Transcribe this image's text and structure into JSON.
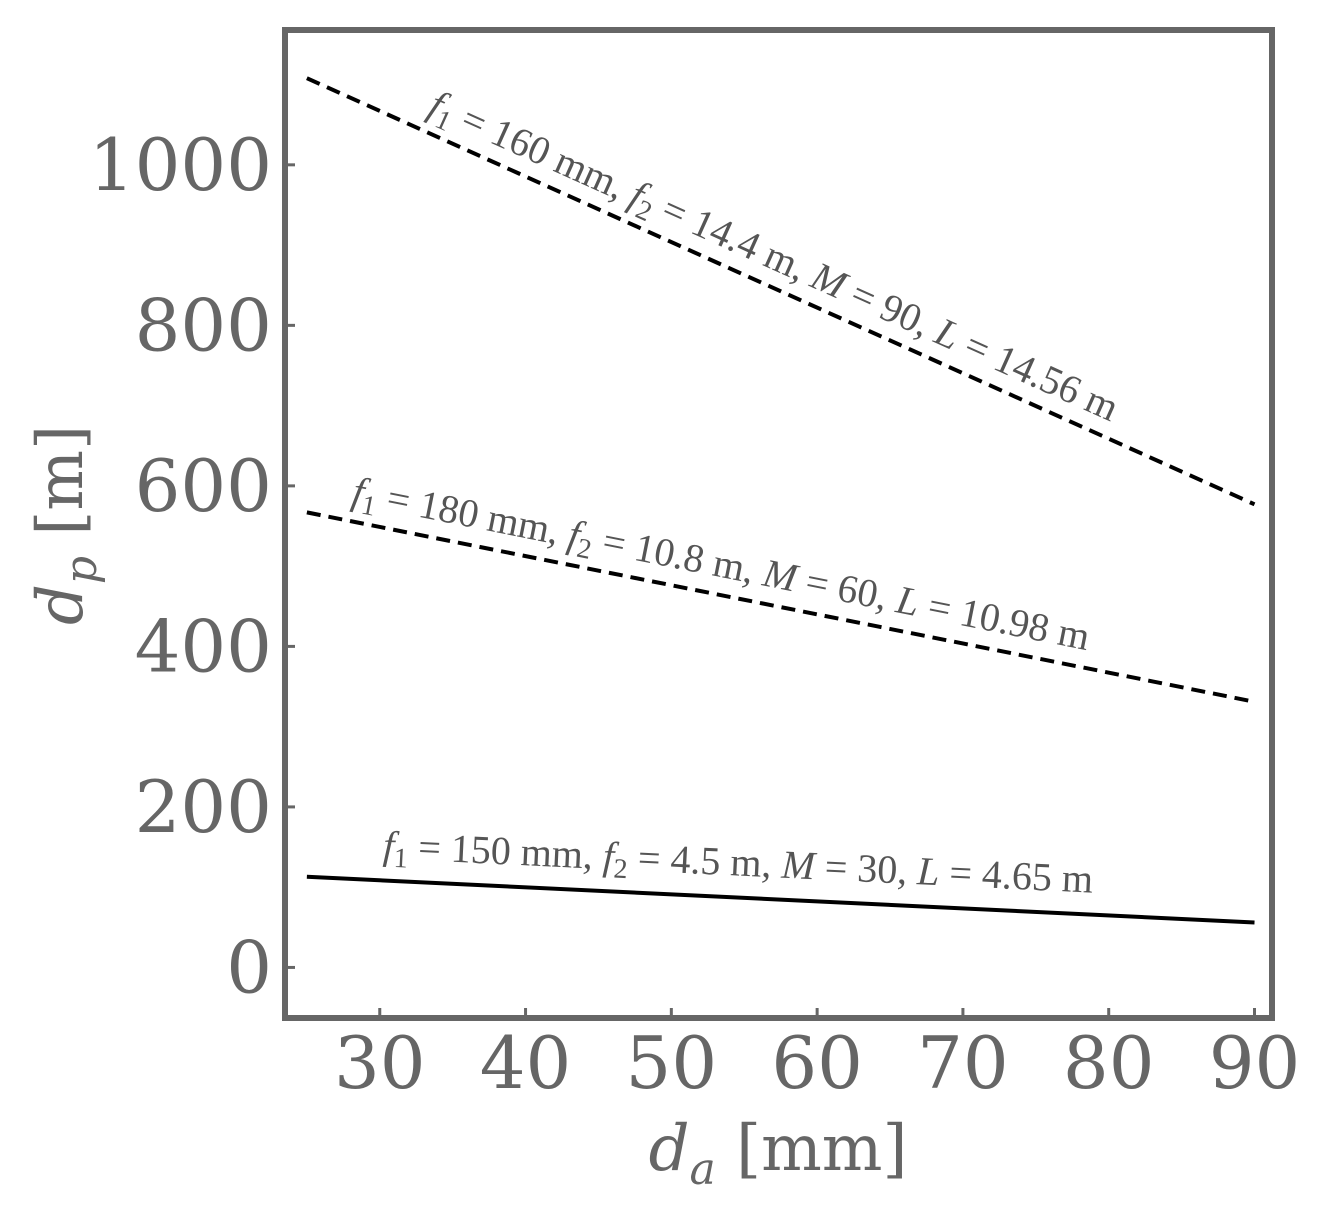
{
  "chart_data": {
    "type": "line",
    "xlabel_var": "d",
    "xlabel_sub": "a",
    "xlabel_unit": " [mm]",
    "ylabel_var": "d",
    "ylabel_sub": "p",
    "ylabel_unit": " [m]",
    "xlim": [
      23.5,
      91.2
    ],
    "ylim": [
      -63,
      1168
    ],
    "xticks": [
      30,
      40,
      50,
      60,
      70,
      80,
      90
    ],
    "xtick_labels": [
      "30",
      "40",
      "50",
      "60",
      "70",
      "80",
      "90"
    ],
    "yticks": [
      0,
      200,
      400,
      600,
      800,
      1000
    ],
    "ytick_labels": [
      "0",
      "200",
      "400",
      "600",
      "800",
      "1000"
    ],
    "grid": false,
    "frame_color": "#666666",
    "series": [
      {
        "style": "dashed",
        "color": "#000000",
        "x": [
          25,
          90
        ],
        "y": [
          1108,
          577
        ],
        "annotation": {
          "f1": "160 mm",
          "f2": "14.4 m",
          "M": "90",
          "L": "14.56 m"
        }
      },
      {
        "style": "dashed",
        "color": "#000000",
        "x": [
          25,
          90
        ],
        "y": [
          567,
          331
        ],
        "annotation": {
          "f1": "180 mm",
          "f2": "10.8 m",
          "M": "60",
          "L": "10.98 m"
        }
      },
      {
        "style": "solid",
        "color": "#000000",
        "x": [
          25,
          90
        ],
        "y": [
          113,
          56
        ],
        "annotation": {
          "f1": "150 mm",
          "f2": "4.5 m",
          "M": "30",
          "L": "4.65 m"
        }
      }
    ]
  }
}
